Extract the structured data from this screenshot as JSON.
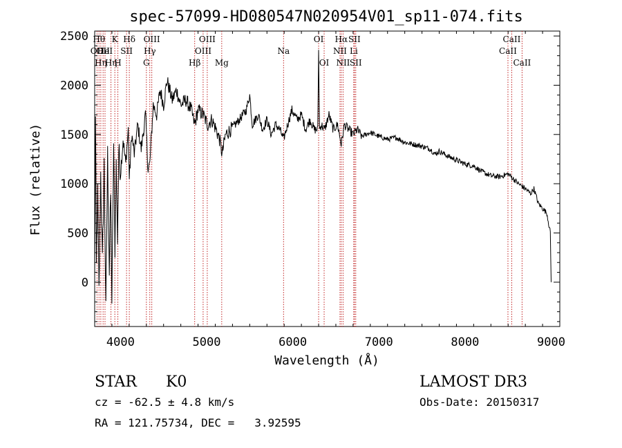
{
  "chart_data": {
    "type": "line",
    "title": "spec-57099-HD080547N020954V01_sp11-074.fits",
    "xlabel": "Wavelength (Å)",
    "ylabel": "Flux (relative)",
    "xlim": [
      3700,
      9100
    ],
    "ylim": [
      -450,
      2550
    ],
    "xticks": [
      4000,
      5000,
      6000,
      7000,
      8000,
      9000
    ],
    "yticks": [
      0,
      500,
      1000,
      1500,
      2000,
      2500
    ],
    "grid": false,
    "series": [
      {
        "name": "spectrum",
        "anchors": [
          [
            3700,
            0
          ],
          [
            3710,
            1650
          ],
          [
            3720,
            150
          ],
          [
            3735,
            900
          ],
          [
            3750,
            -100
          ],
          [
            3770,
            1100
          ],
          [
            3790,
            200
          ],
          [
            3810,
            1200
          ],
          [
            3830,
            -300
          ],
          [
            3850,
            1300
          ],
          [
            3870,
            100
          ],
          [
            3885,
            900
          ],
          [
            3900,
            -200
          ],
          [
            3920,
            1400
          ],
          [
            3935,
            350
          ],
          [
            3950,
            1200
          ],
          [
            3965,
            450
          ],
          [
            3980,
            1350
          ],
          [
            4000,
            1100
          ],
          [
            4030,
            1450
          ],
          [
            4060,
            1200
          ],
          [
            4090,
            1550
          ],
          [
            4102,
            1050
          ],
          [
            4130,
            1500
          ],
          [
            4160,
            1300
          ],
          [
            4200,
            1600
          ],
          [
            4240,
            1350
          ],
          [
            4290,
            1700
          ],
          [
            4320,
            1150
          ],
          [
            4340,
            1200
          ],
          [
            4380,
            1800
          ],
          [
            4420,
            1700
          ],
          [
            4460,
            1950
          ],
          [
            4500,
            1800
          ],
          [
            4540,
            2050
          ],
          [
            4600,
            1850
          ],
          [
            4650,
            1950
          ],
          [
            4700,
            1800
          ],
          [
            4760,
            1850
          ],
          [
            4820,
            1750
          ],
          [
            4861,
            1600
          ],
          [
            4900,
            1750
          ],
          [
            4960,
            1700
          ],
          [
            5010,
            1600
          ],
          [
            5060,
            1650
          ],
          [
            5110,
            1550
          ],
          [
            5150,
            1450
          ],
          [
            5180,
            1300
          ],
          [
            5220,
            1500
          ],
          [
            5280,
            1550
          ],
          [
            5330,
            1600
          ],
          [
            5380,
            1650
          ],
          [
            5420,
            1700
          ],
          [
            5460,
            1750
          ],
          [
            5500,
            1900
          ],
          [
            5530,
            1600
          ],
          [
            5600,
            1700
          ],
          [
            5650,
            1550
          ],
          [
            5700,
            1650
          ],
          [
            5750,
            1500
          ],
          [
            5800,
            1600
          ],
          [
            5850,
            1550
          ],
          [
            5893,
            1450
          ],
          [
            5940,
            1600
          ],
          [
            5990,
            1750
          ],
          [
            6050,
            1650
          ],
          [
            6100,
            1700
          ],
          [
            6150,
            1550
          ],
          [
            6200,
            1650
          ],
          [
            6250,
            1550
          ],
          [
            6290,
            1550
          ],
          [
            6300,
            2350
          ],
          [
            6310,
            1550
          ],
          [
            6330,
            1600
          ],
          [
            6370,
            1550
          ],
          [
            6420,
            1700
          ],
          [
            6470,
            1550
          ],
          [
            6520,
            1600
          ],
          [
            6563,
            1400
          ],
          [
            6600,
            1600
          ],
          [
            6650,
            1550
          ],
          [
            6700,
            1500
          ],
          [
            6750,
            1550
          ],
          [
            6800,
            1480
          ],
          [
            6900,
            1520
          ],
          [
            7000,
            1480
          ],
          [
            7100,
            1450
          ],
          [
            7200,
            1470
          ],
          [
            7300,
            1420
          ],
          [
            7400,
            1400
          ],
          [
            7500,
            1380
          ],
          [
            7600,
            1350
          ],
          [
            7650,
            1300
          ],
          [
            7700,
            1330
          ],
          [
            7800,
            1280
          ],
          [
            7900,
            1240
          ],
          [
            8000,
            1200
          ],
          [
            8100,
            1180
          ],
          [
            8200,
            1120
          ],
          [
            8300,
            1080
          ],
          [
            8400,
            1070
          ],
          [
            8500,
            1100
          ],
          [
            8560,
            1050
          ],
          [
            8620,
            1000
          ],
          [
            8700,
            950
          ],
          [
            8760,
            900
          ],
          [
            8800,
            950
          ],
          [
            8850,
            800
          ],
          [
            8900,
            750
          ],
          [
            8950,
            700
          ],
          [
            8990,
            500
          ],
          [
            9000,
            0
          ]
        ]
      }
    ],
    "spectral_lines": [
      {
        "wavelength": 3727,
        "label": "OII",
        "row": 2
      },
      {
        "wavelength": 3750,
        "label": "Hθ",
        "row": 1
      },
      {
        "wavelength": 3771,
        "label": "Hη",
        "row": 3
      },
      {
        "wavelength": 3798,
        "label": "OII",
        "row": 2
      },
      {
        "wavelength": 3820,
        "label": "HeI",
        "row": 2
      },
      {
        "wavelength": 3889,
        "label": "Hη",
        "row": 3
      },
      {
        "wavelength": 3934,
        "label": "K",
        "row": 1
      },
      {
        "wavelength": 3969,
        "label": "H",
        "row": 3
      },
      {
        "wavelength": 4070,
        "label": "SII",
        "row": 2
      },
      {
        "wavelength": 4102,
        "label": "Hδ",
        "row": 1
      },
      {
        "wavelength": 4300,
        "label": "G",
        "row": 3
      },
      {
        "wavelength": 4340,
        "label": "Hγ",
        "row": 2
      },
      {
        "wavelength": 4363,
        "label": "OIII",
        "row": 1
      },
      {
        "wavelength": 4861,
        "label": "Hβ",
        "row": 3
      },
      {
        "wavelength": 4959,
        "label": "OIII",
        "row": 2
      },
      {
        "wavelength": 5007,
        "label": "OIII",
        "row": 1
      },
      {
        "wavelength": 5175,
        "label": "Mg",
        "row": 3
      },
      {
        "wavelength": 5893,
        "label": "Na",
        "row": 2
      },
      {
        "wavelength": 6300,
        "label": "OI",
        "row": 1
      },
      {
        "wavelength": 6364,
        "label": "OI",
        "row": 3
      },
      {
        "wavelength": 6548,
        "label": "NII",
        "row": 2
      },
      {
        "wavelength": 6563,
        "label": "Hα",
        "row": 1
      },
      {
        "wavelength": 6584,
        "label": "NII",
        "row": 3
      },
      {
        "wavelength": 6708,
        "label": "Li",
        "row": 2
      },
      {
        "wavelength": 6716,
        "label": "SII",
        "row": 1
      },
      {
        "wavelength": 6731,
        "label": "SII",
        "row": 3
      },
      {
        "wavelength": 8498,
        "label": "CaII",
        "row": 2
      },
      {
        "wavelength": 8542,
        "label": "CaII",
        "row": 1
      },
      {
        "wavelength": 8662,
        "label": "CaII",
        "row": 3
      }
    ]
  },
  "footer": {
    "object_class": "STAR",
    "subclass": "K0",
    "survey": "LAMOST DR3",
    "redshift": "cz = -62.5 ± 4.8 km/s",
    "obs_date": "Obs-Date: 20150317",
    "coords": "RA = 121.75734, DEC =   3.92595"
  }
}
